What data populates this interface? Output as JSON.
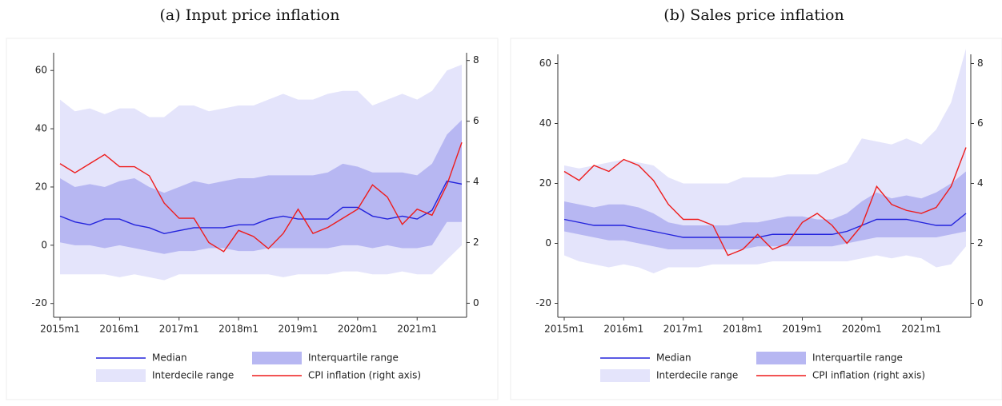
{
  "chart_data": [
    {
      "type": "line",
      "title": "(a) Input price inflation",
      "categories": [
        "2015m1",
        null,
        null,
        null,
        "2016m1",
        null,
        null,
        null,
        "2017m1",
        null,
        null,
        null,
        "2018m1",
        null,
        null,
        null,
        "2019m1",
        null,
        null,
        null,
        "2020m1",
        null,
        null,
        null,
        "2021m1",
        null,
        null,
        null
      ],
      "ylim": [
        -22,
        65
      ],
      "yticks": [
        -20,
        0,
        20,
        40,
        60
      ],
      "y2lim": [
        -0.2,
        8.15
      ],
      "y2ticks": [
        0,
        2,
        4,
        6,
        8
      ],
      "series": [
        {
          "name": "Median",
          "type": "line",
          "color": "#2323dc",
          "values": [
            10,
            8,
            7,
            9,
            9,
            7,
            6,
            4,
            5,
            6,
            6,
            6,
            7,
            7,
            9,
            10,
            9,
            9,
            9,
            13,
            13,
            10,
            9,
            10,
            9,
            12,
            22,
            21
          ]
        },
        {
          "name": "Interquartile range",
          "type": "band",
          "color": "#b7b7f2",
          "low": [
            1,
            0,
            0,
            -1,
            0,
            -1,
            -2,
            -3,
            -2,
            -2,
            -1,
            -1,
            -2,
            -2,
            -1,
            -1,
            -1,
            -1,
            -1,
            0,
            0,
            -1,
            0,
            -1,
            -1,
            0,
            8,
            8
          ],
          "high": [
            23,
            20,
            21,
            20,
            22,
            23,
            20,
            18,
            20,
            22,
            21,
            22,
            23,
            23,
            24,
            24,
            24,
            24,
            25,
            28,
            27,
            25,
            25,
            25,
            24,
            28,
            38,
            43
          ]
        },
        {
          "name": "Interdecile range",
          "type": "band",
          "color": "#e4e4fb",
          "low": [
            -10,
            -10,
            -10,
            -10,
            -11,
            -10,
            -11,
            -12,
            -10,
            -10,
            -10,
            -10,
            -10,
            -10,
            -10,
            -11,
            -10,
            -10,
            -10,
            -9,
            -9,
            -10,
            -10,
            -9,
            -10,
            -10,
            -5,
            0
          ],
          "high": [
            50,
            46,
            47,
            45,
            47,
            47,
            44,
            44,
            48,
            48,
            46,
            47,
            48,
            48,
            50,
            52,
            50,
            50,
            52,
            53,
            53,
            48,
            50,
            52,
            50,
            53,
            60,
            62
          ]
        },
        {
          "name": "CPI inflation (right axis)",
          "type": "line",
          "axis": "y2",
          "color": "#ee1c1c",
          "values": [
            4.6,
            4.3,
            4.6,
            4.9,
            4.5,
            4.5,
            4.2,
            3.3,
            2.8,
            2.8,
            2.0,
            1.7,
            2.4,
            2.2,
            1.8,
            2.3,
            3.1,
            2.3,
            2.5,
            2.8,
            3.1,
            3.9,
            3.5,
            2.6,
            3.1,
            2.9,
            3.9,
            5.3
          ]
        }
      ]
    },
    {
      "type": "line",
      "title": "(b) Sales price inflation",
      "categories": [
        "2015m1",
        null,
        null,
        null,
        "2016m1",
        null,
        null,
        null,
        "2017m1",
        null,
        null,
        null,
        "2018m1",
        null,
        null,
        null,
        "2019m1",
        null,
        null,
        null,
        "2020m1",
        null,
        null,
        null,
        "2021m1",
        null,
        null,
        null
      ],
      "ylim": [
        -22,
        62
      ],
      "yticks": [
        -20,
        0,
        20,
        40,
        60
      ],
      "y2lim": [
        -0.2,
        8.2
      ],
      "y2ticks": [
        0,
        2,
        4,
        6,
        8
      ],
      "series": [
        {
          "name": "Median",
          "type": "line",
          "color": "#2323dc",
          "values": [
            8,
            7,
            6,
            6,
            6,
            5,
            4,
            3,
            2,
            2,
            2,
            2,
            2,
            2,
            3,
            3,
            3,
            3,
            3,
            4,
            6,
            8,
            8,
            8,
            7,
            6,
            6,
            10
          ]
        },
        {
          "name": "Interquartile range",
          "type": "band",
          "color": "#b7b7f2",
          "low": [
            4,
            3,
            2,
            1,
            1,
            0,
            -1,
            -2,
            -2,
            -2,
            -2,
            -2,
            -2,
            -1,
            -1,
            -1,
            -1,
            -1,
            -1,
            0,
            1,
            2,
            2,
            2,
            2,
            2,
            3,
            4
          ],
          "high": [
            14,
            13,
            12,
            13,
            13,
            12,
            10,
            7,
            6,
            6,
            6,
            6,
            7,
            7,
            8,
            9,
            9,
            8,
            8,
            10,
            14,
            17,
            15,
            16,
            15,
            17,
            20,
            24
          ]
        },
        {
          "name": "Interdecile range",
          "type": "band",
          "color": "#e4e4fb",
          "low": [
            -4,
            -6,
            -7,
            -8,
            -7,
            -8,
            -10,
            -8,
            -8,
            -8,
            -7,
            -7,
            -7,
            -7,
            -6,
            -6,
            -6,
            -6,
            -6,
            -6,
            -5,
            -4,
            -5,
            -4,
            -5,
            -8,
            -7,
            -1
          ],
          "high": [
            26,
            25,
            26,
            27,
            28,
            27,
            26,
            22,
            20,
            20,
            20,
            20,
            22,
            22,
            22,
            23,
            23,
            23,
            25,
            27,
            35,
            34,
            33,
            35,
            33,
            38,
            47,
            65
          ]
        },
        {
          "name": "CPI inflation (right axis)",
          "type": "line",
          "axis": "y2",
          "color": "#ee1c1c",
          "values": [
            4.4,
            4.1,
            4.6,
            4.4,
            4.8,
            4.6,
            4.1,
            3.3,
            2.8,
            2.8,
            2.6,
            1.6,
            1.8,
            2.3,
            1.8,
            2.0,
            2.7,
            3.0,
            2.6,
            2.0,
            2.6,
            3.9,
            3.3,
            3.1,
            3.0,
            3.2,
            3.9,
            5.2
          ]
        }
      ]
    }
  ]
}
